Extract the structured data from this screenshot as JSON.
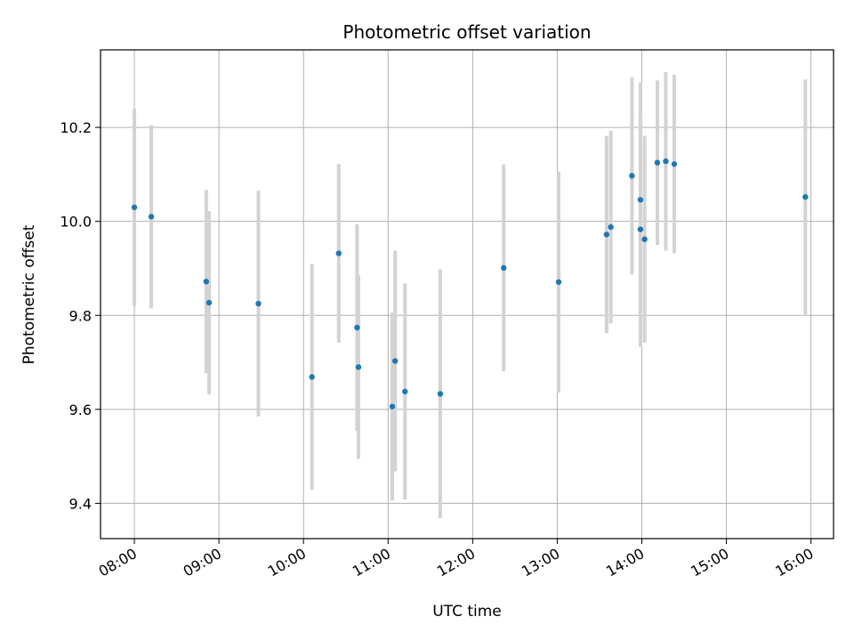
{
  "chart_data": {
    "type": "scatter",
    "title": "Photometric offset variation",
    "xlabel": "UTC time",
    "ylabel": "Photometric offset",
    "x_axis_type": "time",
    "xlim": [
      "07:36",
      "16:16"
    ],
    "ylim": [
      9.325,
      10.365
    ],
    "x_ticks": [
      "08:00",
      "09:00",
      "10:00",
      "11:00",
      "12:00",
      "13:00",
      "14:00",
      "15:00",
      "16:00"
    ],
    "y_ticks": [
      9.4,
      9.6,
      9.8,
      10.0,
      10.2
    ],
    "grid": true,
    "colors": {
      "point": "#1f77b4",
      "errorbar": "#d3d3d3",
      "grid": "#b0b0b0"
    },
    "points": [
      {
        "x": "08:00",
        "y": 10.03,
        "err": 0.21
      },
      {
        "x": "08:12",
        "y": 10.01,
        "err": 0.195
      },
      {
        "x": "08:51",
        "y": 9.872,
        "err": 0.195
      },
      {
        "x": "08:53",
        "y": 9.827,
        "err": 0.195
      },
      {
        "x": "09:28",
        "y": 9.825,
        "err": 0.24
      },
      {
        "x": "10:06",
        "y": 9.669,
        "err": 0.24
      },
      {
        "x": "10:25",
        "y": 9.932,
        "err": 0.19
      },
      {
        "x": "10:38",
        "y": 9.774,
        "err": 0.22
      },
      {
        "x": "10:39",
        "y": 9.69,
        "err": 0.195
      },
      {
        "x": "11:03",
        "y": 9.606,
        "err": 0.2
      },
      {
        "x": "11:05",
        "y": 9.703,
        "err": 0.235
      },
      {
        "x": "11:12",
        "y": 9.638,
        "err": 0.23
      },
      {
        "x": "11:37",
        "y": 9.633,
        "err": 0.265
      },
      {
        "x": "12:22",
        "y": 9.901,
        "err": 0.22
      },
      {
        "x": "13:01",
        "y": 9.871,
        "err": 0.235
      },
      {
        "x": "13:35",
        "y": 9.972,
        "err": 0.21
      },
      {
        "x": "13:38",
        "y": 9.988,
        "err": 0.205
      },
      {
        "x": "13:53",
        "y": 10.097,
        "err": 0.21
      },
      {
        "x": "13:59",
        "y": 9.983,
        "err": 0.25
      },
      {
        "x": "13:59",
        "y": 10.046,
        "err": 0.25
      },
      {
        "x": "14:02",
        "y": 9.962,
        "err": 0.22
      },
      {
        "x": "14:11",
        "y": 10.125,
        "err": 0.175
      },
      {
        "x": "14:17",
        "y": 10.128,
        "err": 0.19
      },
      {
        "x": "14:23",
        "y": 10.122,
        "err": 0.19
      },
      {
        "x": "15:56",
        "y": 10.052,
        "err": 0.25
      }
    ]
  }
}
